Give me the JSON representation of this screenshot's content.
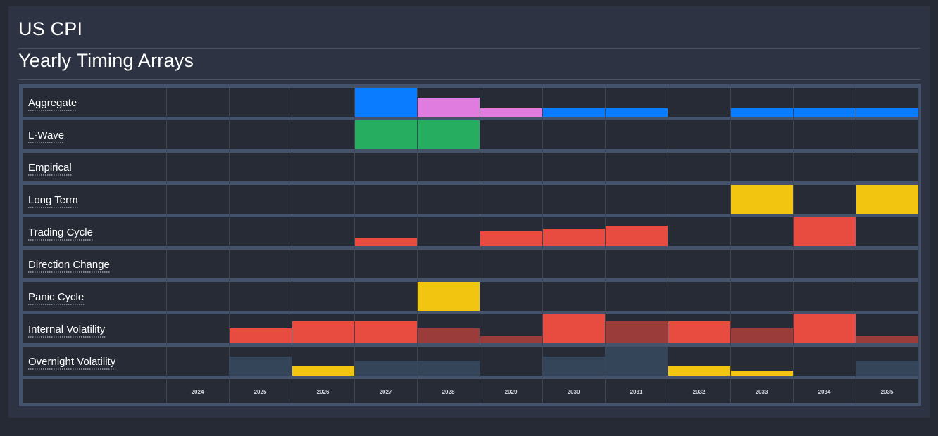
{
  "header": {
    "title": "US CPI",
    "subtitle": "Yearly Timing Arrays"
  },
  "colors": {
    "cell_bg": "#272b36",
    "frame": "#44536b",
    "grid": "#3d4557",
    "blue": "#0a7cff",
    "pink": "#e07be0",
    "green": "#26ad5f",
    "yellow": "#f2c511",
    "red": "#e84b40",
    "dark_red": "#9a3d3a",
    "slate": "#344559",
    "text": "#ffffff"
  },
  "chart_data": {
    "type": "heatmap",
    "years": [
      "2024",
      "2025",
      "2026",
      "2027",
      "2028",
      "2029",
      "2030",
      "2031",
      "2032",
      "2033",
      "2034",
      "2035"
    ],
    "rows": [
      {
        "label": "Aggregate",
        "cells": [
          null,
          null,
          null,
          {
            "level": 1.0,
            "color": "blue"
          },
          {
            "level": 0.65,
            "color": "pink"
          },
          {
            "level": 0.3,
            "color": "pink"
          },
          {
            "level": 0.3,
            "color": "blue"
          },
          {
            "level": 0.3,
            "color": "blue"
          },
          null,
          {
            "level": 0.3,
            "color": "blue"
          },
          {
            "level": 0.3,
            "color": "blue"
          },
          {
            "level": 0.3,
            "color": "blue"
          }
        ]
      },
      {
        "label": "L-Wave",
        "cells": [
          null,
          null,
          null,
          {
            "level": 1.0,
            "color": "green"
          },
          {
            "level": 1.0,
            "color": "green"
          },
          null,
          null,
          null,
          null,
          null,
          null,
          null
        ]
      },
      {
        "label": "Empirical",
        "cells": [
          null,
          null,
          null,
          null,
          null,
          null,
          null,
          null,
          null,
          null,
          null,
          null
        ]
      },
      {
        "label": "Long Term",
        "cells": [
          null,
          null,
          null,
          null,
          null,
          null,
          null,
          null,
          null,
          {
            "level": 1.0,
            "color": "yellow"
          },
          null,
          {
            "level": 1.0,
            "color": "yellow"
          }
        ]
      },
      {
        "label": "Trading Cycle",
        "cells": [
          null,
          null,
          null,
          {
            "level": 0.3,
            "color": "red"
          },
          null,
          {
            "level": 0.5,
            "color": "red"
          },
          {
            "level": 0.6,
            "color": "red"
          },
          {
            "level": 0.7,
            "color": "red"
          },
          null,
          null,
          {
            "level": 1.0,
            "color": "red"
          },
          null
        ]
      },
      {
        "label": "Direction Change",
        "cells": [
          null,
          null,
          null,
          null,
          null,
          null,
          null,
          null,
          null,
          null,
          null,
          null
        ]
      },
      {
        "label": "Panic Cycle",
        "cells": [
          null,
          null,
          null,
          null,
          {
            "level": 1.0,
            "color": "yellow"
          },
          null,
          null,
          null,
          null,
          null,
          null,
          null
        ]
      },
      {
        "label": "Internal Volatility",
        "cells": [
          null,
          {
            "level": 0.5,
            "color": "red"
          },
          {
            "level": 0.75,
            "color": "red"
          },
          {
            "level": 0.75,
            "color": "red"
          },
          {
            "level": 0.5,
            "color": "dark_red"
          },
          {
            "level": 0.25,
            "color": "dark_red"
          },
          {
            "level": 1.0,
            "color": "red"
          },
          {
            "level": 0.75,
            "color": "dark_red"
          },
          {
            "level": 0.75,
            "color": "red"
          },
          {
            "level": 0.5,
            "color": "dark_red"
          },
          {
            "level": 1.0,
            "color": "red"
          },
          {
            "level": 0.25,
            "color": "dark_red"
          }
        ]
      },
      {
        "label": "Overnight Volatility",
        "cells": [
          null,
          {
            "level": 0.65,
            "color": "slate"
          },
          {
            "level": 0.35,
            "color": "yellow"
          },
          {
            "level": 0.5,
            "color": "slate"
          },
          {
            "level": 0.5,
            "color": "slate"
          },
          null,
          {
            "level": 0.65,
            "color": "slate"
          },
          {
            "level": 1.0,
            "color": "slate"
          },
          {
            "level": 0.35,
            "color": "yellow"
          },
          {
            "level": 0.18,
            "color": "yellow"
          },
          null,
          {
            "level": 0.5,
            "color": "slate"
          }
        ]
      }
    ]
  }
}
